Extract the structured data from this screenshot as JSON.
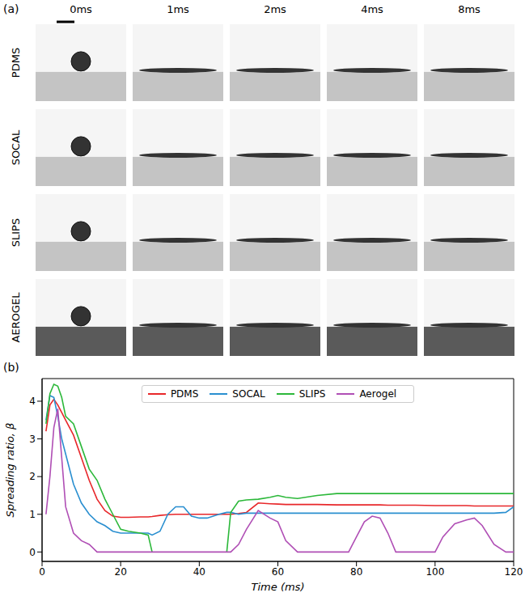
{
  "panel_a": {
    "label": "(a)",
    "times": [
      "0ms",
      "1ms",
      "2ms",
      "4ms",
      "8ms"
    ],
    "rows": [
      "PDMS",
      "SOCAL",
      "SLIPS",
      "AEROGEL"
    ]
  },
  "panel_b_label": "(b)",
  "chart_data": {
    "type": "line",
    "x_label": "Time (ms)",
    "y_label": "Spreading ratio, β",
    "xlim": [
      0,
      120
    ],
    "xticks": [
      0,
      20,
      40,
      60,
      80,
      100,
      120
    ],
    "ylim": [
      -0.25,
      4.6
    ],
    "yticks": [
      0,
      1,
      2,
      3,
      4
    ],
    "grid": false,
    "legend": "top",
    "x": [
      1,
      2,
      3,
      4,
      5,
      6,
      8,
      10,
      12,
      14,
      16,
      18,
      20,
      22,
      25,
      27,
      28,
      30,
      32,
      34,
      36,
      38,
      40,
      42,
      45,
      47,
      48,
      50,
      52,
      55,
      58,
      60,
      62,
      65,
      70,
      75,
      78,
      80,
      82,
      84,
      86,
      88,
      90,
      95,
      100,
      102,
      105,
      108,
      110,
      112,
      115,
      118,
      120
    ],
    "series": [
      {
        "name": "PDMS",
        "color": "#e8272a",
        "values": [
          3.2,
          3.9,
          4.05,
          3.9,
          3.7,
          3.5,
          3.1,
          2.5,
          1.9,
          1.4,
          1.1,
          0.95,
          0.92,
          0.92,
          0.93,
          0.93,
          0.94,
          0.97,
          0.99,
          1.0,
          1.0,
          1.0,
          1.0,
          1.0,
          1.0,
          1.0,
          1.0,
          1.02,
          1.05,
          1.3,
          1.28,
          1.27,
          1.26,
          1.26,
          1.26,
          1.25,
          1.25,
          1.25,
          1.25,
          1.25,
          1.25,
          1.24,
          1.24,
          1.24,
          1.23,
          1.23,
          1.23,
          1.23,
          1.22,
          1.22,
          1.22,
          1.22,
          1.22
        ]
      },
      {
        "name": "SOCAL",
        "color": "#2a8fd0",
        "values": [
          3.5,
          4.15,
          4.1,
          3.6,
          3.0,
          2.6,
          1.8,
          1.3,
          1.0,
          0.8,
          0.7,
          0.55,
          0.5,
          0.5,
          0.5,
          0.5,
          0.45,
          0.55,
          1.0,
          1.2,
          1.2,
          0.95,
          0.9,
          0.9,
          1.0,
          1.05,
          1.05,
          1.0,
          1.03,
          1.03,
          1.03,
          1.03,
          1.03,
          1.03,
          1.03,
          1.03,
          1.03,
          1.03,
          1.03,
          1.03,
          1.03,
          1.03,
          1.03,
          1.03,
          1.03,
          1.03,
          1.03,
          1.03,
          1.03,
          1.03,
          1.03,
          1.05,
          1.2
        ]
      },
      {
        "name": "SLIPS",
        "color": "#2cb83a",
        "values": [
          3.4,
          4.2,
          4.45,
          4.4,
          4.1,
          3.6,
          3.4,
          2.8,
          2.2,
          1.9,
          1.4,
          1.0,
          0.6,
          0.55,
          0.5,
          0.45,
          0,
          null,
          null,
          null,
          null,
          null,
          null,
          null,
          null,
          0,
          1.05,
          1.35,
          1.38,
          1.4,
          1.45,
          1.5,
          1.45,
          1.42,
          1.5,
          1.55,
          1.55,
          1.55,
          1.55,
          1.55,
          1.55,
          1.55,
          1.55,
          1.55,
          1.55,
          1.55,
          1.55,
          1.55,
          1.55,
          1.55,
          1.55,
          1.55,
          1.55
        ]
      },
      {
        "name": "Aerogel",
        "color": "#b04fb5",
        "values": [
          1.0,
          2.0,
          3.3,
          3.8,
          2.5,
          1.2,
          0.5,
          0.3,
          0.2,
          0,
          0,
          0,
          0,
          0,
          0,
          0,
          0,
          0,
          0,
          0,
          0,
          0,
          0,
          0,
          0,
          0,
          0,
          0.2,
          0.6,
          1.1,
          0.9,
          0.8,
          0.3,
          0,
          0,
          0,
          0,
          0.4,
          0.8,
          0.95,
          0.9,
          0.5,
          0,
          0,
          0,
          0.4,
          0.75,
          0.85,
          0.9,
          0.7,
          0.2,
          0,
          0
        ]
      }
    ]
  }
}
